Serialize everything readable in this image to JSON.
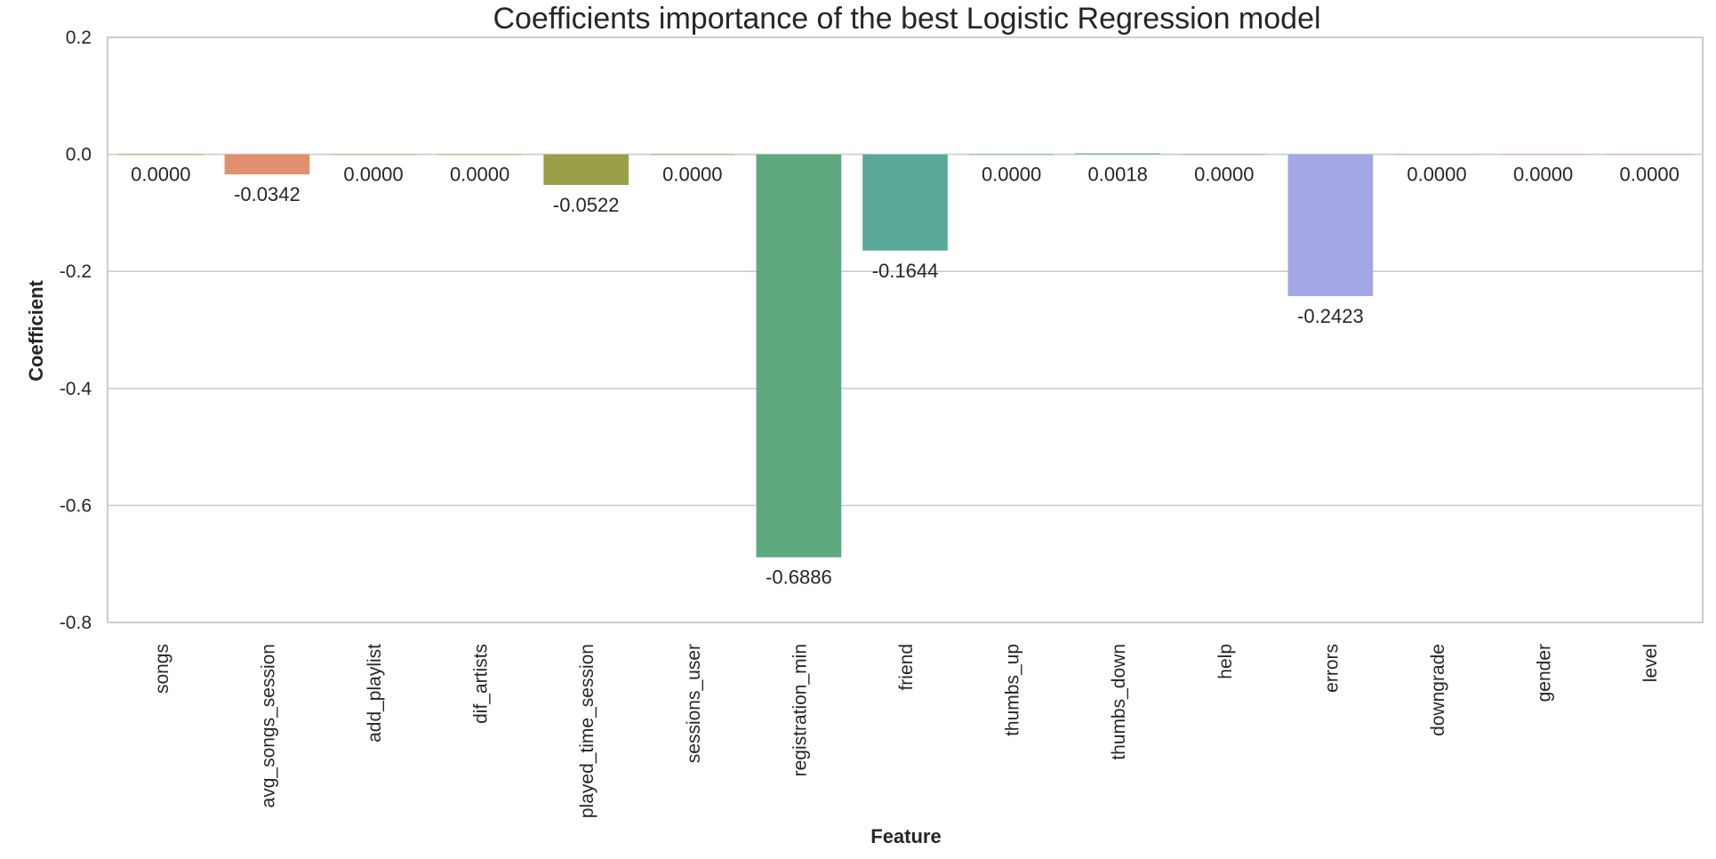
{
  "chart_data": {
    "type": "bar",
    "title": "Coefficients importance of the best Logistic Regression model",
    "xlabel": "Feature",
    "ylabel": "Coefficient",
    "ylim": [
      -0.8,
      0.2
    ],
    "yticks": [
      0.2,
      0.0,
      -0.2,
      -0.4,
      -0.6,
      -0.8
    ],
    "ytick_labels": [
      "0.2",
      "0.0",
      "-0.2",
      "-0.4",
      "-0.6",
      "-0.8"
    ],
    "grid": true,
    "categories": [
      "songs",
      "avg_songs_session",
      "add_playlist",
      "dif_artists",
      "played_time_session",
      "sessions_user",
      "registration_min",
      "friend",
      "thumbs_up",
      "thumbs_down",
      "help",
      "errors",
      "downgrade",
      "gender",
      "level"
    ],
    "values": [
      0.0,
      -0.0342,
      0.0,
      0.0,
      -0.0522,
      0.0,
      -0.6886,
      -0.1644,
      0.0,
      0.0018,
      0.0,
      -0.2423,
      0.0,
      0.0,
      0.0
    ],
    "value_labels": [
      "0.0000",
      "-0.0342",
      "0.0000",
      "0.0000",
      "-0.0522",
      "0.0000",
      "-0.6886",
      "-0.1644",
      "0.0000",
      "0.0018",
      "0.0000",
      "-0.2423",
      "0.0000",
      "0.0000",
      "0.0000"
    ],
    "colors": [
      "#e1812c",
      "#e1906f",
      "#d7a06d",
      "#c0a54e",
      "#9aa04a",
      "#78a851",
      "#5ea87d",
      "#5aa898",
      "#5bacb0",
      "#62aec4",
      "#7ab3dc",
      "#a3a7e4",
      "#c59ae2",
      "#de8ed8",
      "#e78bbd"
    ]
  }
}
